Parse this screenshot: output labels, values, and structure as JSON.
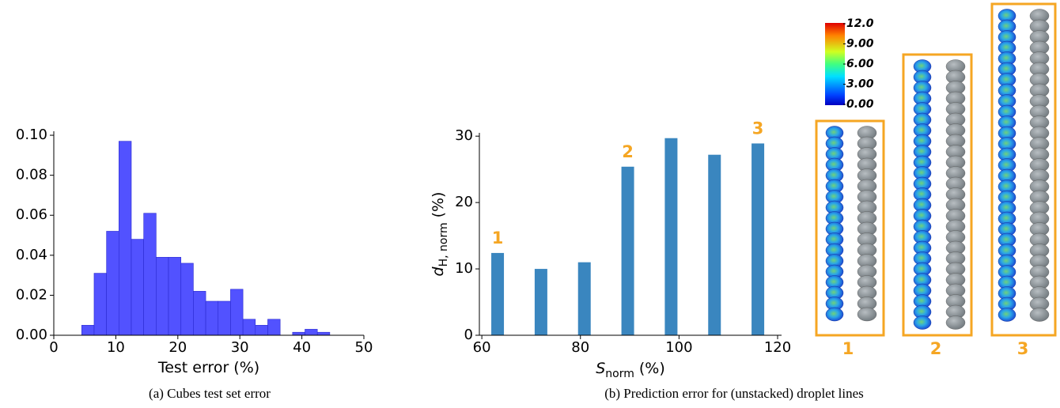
{
  "chart_data": [
    {
      "type": "histogram",
      "bins": [
        4.5,
        6.5,
        8.5,
        10.5,
        12.5,
        14.5,
        16.5,
        18.5,
        20.5,
        22.5,
        24.5,
        26.5,
        28.5,
        30.5,
        32.5,
        34.5,
        36.5,
        38.5,
        40.5,
        42.5,
        44.5
      ],
      "values": [
        0.005,
        0.031,
        0.052,
        0.097,
        0.048,
        0.061,
        0.039,
        0.039,
        0.036,
        0.022,
        0.017,
        0.017,
        0.023,
        0.008,
        0.005,
        0.008,
        0,
        0.0015,
        0.003,
        0.0015
      ],
      "color": "#5252ff",
      "edgecolor": "#2a2ad0",
      "xlim": [
        0,
        50
      ],
      "ylim": [
        0,
        0.102
      ],
      "xticks": [
        0,
        10,
        20,
        30,
        40,
        50
      ],
      "yticks": [
        {
          "value": 0,
          "label": "0.00"
        },
        {
          "value": 0.02,
          "label": "0.02"
        },
        {
          "value": 0.04,
          "label": "0.04"
        },
        {
          "value": 0.06,
          "label": "0.06"
        },
        {
          "value": 0.08,
          "label": "0.08"
        },
        {
          "value": 0.1,
          "label": "0.10"
        }
      ],
      "x_label": "Test error (%)",
      "caption": "(a) Cubes test set error"
    },
    {
      "type": "bar",
      "x": [
        63.2,
        72.0,
        80.8,
        89.6,
        98.4,
        107.2,
        116.0
      ],
      "values": [
        12.4,
        10.0,
        11.0,
        25.4,
        29.7,
        27.2,
        28.9
      ],
      "color": "#3a86bf",
      "xlim": [
        59.5,
        120.8
      ],
      "ylim": [
        0,
        30.5
      ],
      "xticks": [
        60,
        80,
        100,
        120
      ],
      "yticks": [
        0,
        10,
        20,
        30
      ],
      "x_label": {
        "symbol": "S",
        "subscript": "norm",
        "unit": "(%)"
      },
      "y_label": {
        "symbol": "d",
        "subscript": "H, norm",
        "unit": "(%)"
      },
      "annotations": [
        "1",
        "2",
        "3"
      ],
      "annotation_color": "#f5a623",
      "caption": "(b) Prediction error for (unstacked) droplet lines"
    }
  ],
  "droplet_panel": {
    "colorbar_lim": [
      0,
      12
    ],
    "colorbar_ticks": [
      {
        "value": 12,
        "label": "12.0"
      },
      {
        "value": 9,
        "label": "9.00"
      },
      {
        "value": 6,
        "label": "6.00"
      },
      {
        "value": 3,
        "label": "3.00"
      },
      {
        "value": 0,
        "label": "0.00"
      }
    ],
    "labels": [
      "1",
      "2",
      "3"
    ]
  }
}
